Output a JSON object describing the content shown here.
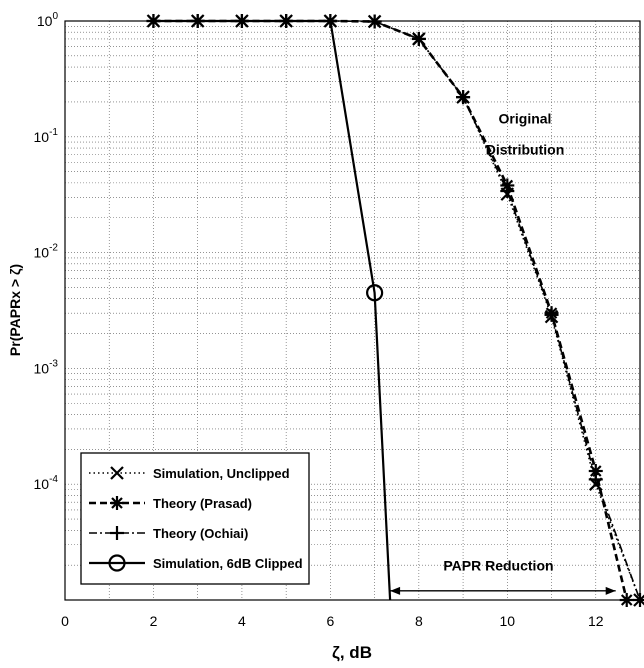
{
  "chart_data": {
    "type": "line",
    "xlabel": "ζ, dB",
    "ylabel": "Pr(PAPRx > ζ)",
    "xlim": [
      0,
      13
    ],
    "ylim": [
      1e-05,
      1
    ],
    "yscale": "log",
    "grid": true,
    "x_ticks": [
      "0",
      "2",
      "4",
      "6",
      "8",
      "10",
      "12"
    ],
    "y_ticks": [
      {
        "base": "10",
        "exp": "0"
      },
      {
        "base": "10",
        "exp": "-1"
      },
      {
        "base": "10",
        "exp": "-2"
      },
      {
        "base": "10",
        "exp": "-3"
      },
      {
        "base": "10",
        "exp": "-4"
      }
    ],
    "legend_position": "bottom-left",
    "series": [
      {
        "name": "Simulation, Unclipped",
        "style": "dotted",
        "marker": "x",
        "x": [
          2,
          3,
          4,
          5,
          6,
          7,
          8,
          9,
          10,
          11,
          12,
          13
        ],
        "y": [
          1,
          1,
          1,
          1,
          1,
          0.99,
          0.7,
          0.22,
          0.032,
          0.0028,
          0.0001,
          1e-05
        ]
      },
      {
        "name": "Theory (Prasad)",
        "style": "dashed",
        "marker": "asterisk",
        "x": [
          2,
          3,
          4,
          5,
          6,
          7,
          8,
          9,
          10,
          11,
          12,
          12.7
        ],
        "y": [
          1,
          1,
          1,
          1,
          1,
          0.99,
          0.7,
          0.22,
          0.038,
          0.003,
          0.00013,
          1e-05
        ]
      },
      {
        "name": "Theory (Ochiai)",
        "style": "dashdot",
        "marker": "plus",
        "x": [
          2,
          3,
          4,
          5,
          6,
          7,
          8,
          9,
          10,
          11,
          12,
          13
        ],
        "y": [
          1,
          1,
          1,
          1,
          1,
          0.99,
          0.7,
          0.22,
          0.034,
          0.0029,
          0.00011,
          1e-05
        ]
      },
      {
        "name": "Simulation, 6dB Clipped",
        "style": "solid",
        "marker": "circle",
        "x": [
          2,
          3,
          4,
          5,
          6,
          7,
          7.35
        ],
        "y": [
          1,
          1,
          1,
          1,
          1,
          0.0045,
          1e-05
        ],
        "marker_x": [
          7
        ],
        "marker_y": [
          0.0045
        ]
      }
    ],
    "annotations": [
      {
        "text": "Original",
        "x": 10.4,
        "y": 0.13
      },
      {
        "text": "Distribution",
        "x": 10.4,
        "y": 0.07
      },
      {
        "text": "PAPR Reduction",
        "x": 9.8,
        "y": 1.8e-05
      }
    ],
    "arrow": {
      "x_start": 7.35,
      "x_end": 12.45,
      "y": 1.2e-05
    }
  }
}
